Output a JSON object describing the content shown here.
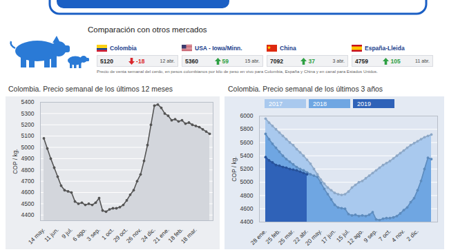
{
  "markets": {
    "title": "Comparación con otros mercados",
    "items": [
      {
        "name": "Colombia",
        "value": 5120,
        "change": -18,
        "date": "12 abr."
      },
      {
        "name": "USA - Iowa/Minn.",
        "value": 5360,
        "change": 59,
        "date": "15 abr."
      },
      {
        "name": "China",
        "value": 7092,
        "change": 37,
        "date": "3 abr."
      },
      {
        "name": "España-Lleida",
        "value": 4759,
        "change": 105,
        "date": "11 abr."
      }
    ],
    "note": "Precio de venta semanal del cerdo, en pesos colombianos por kilo de peso en vivo para Colombia, España y China y en canal para Estados Unidos."
  },
  "chart_data": [
    {
      "type": "area",
      "title": "Colombia. Precio semanal de los últimos 12 meses",
      "y_label": "COP / kg.",
      "categories": [
        "14 may.",
        null,
        null,
        null,
        "11 jun.",
        null,
        null,
        null,
        "9 jul.",
        null,
        null,
        null,
        "6 ago.",
        null,
        null,
        null,
        "3 sep.",
        null,
        null,
        null,
        "1 oct.",
        null,
        null,
        null,
        "29 oct.",
        null,
        null,
        null,
        "26 nov.",
        null,
        null,
        null,
        "24 dic.",
        null,
        null,
        null,
        "21 ene.",
        null,
        null,
        null,
        "18 feb.",
        null,
        null,
        null,
        "18 mar.",
        null,
        null,
        null,
        null
      ],
      "values": [
        5080,
        4990,
        4900,
        4820,
        4740,
        4660,
        4620,
        4610,
        4600,
        4520,
        4500,
        4510,
        4490,
        4500,
        4490,
        4510,
        4550,
        4440,
        4430,
        4450,
        4460,
        4460,
        4470,
        4490,
        4530,
        4580,
        4620,
        4700,
        4760,
        4880,
        5020,
        5200,
        5370,
        5380,
        5350,
        5300,
        5280,
        5240,
        5250,
        5230,
        5240,
        5210,
        5220,
        5200,
        5190,
        5180,
        5160,
        5140,
        5120
      ],
      "color": "#555555",
      "marker": "circle",
      "ylim": [
        4350,
        5400
      ],
      "yticks": [
        4400,
        4500,
        4600,
        4700,
        4800,
        4900,
        5000,
        5100,
        5200,
        5300,
        5400
      ],
      "grid": true
    },
    {
      "type": "area",
      "title": "Colombia. Precio semanal de los últimos 3 años",
      "y_label": "COP / kg.",
      "categories": [
        "28 ene.",
        null,
        null,
        null,
        "25 feb.",
        null,
        null,
        null,
        "25 mar.",
        null,
        null,
        null,
        "22 abr.",
        null,
        null,
        null,
        "20 may.",
        null,
        null,
        null,
        "17 jun.",
        null,
        null,
        null,
        "15 jul.",
        null,
        null,
        null,
        "12 ago.",
        null,
        null,
        null,
        "9 sep.",
        null,
        null,
        null,
        "7 oct.",
        null,
        null,
        null,
        "4 nov.",
        null,
        null,
        null,
        "2 dic.",
        null,
        null,
        null,
        null
      ],
      "series": [
        {
          "name": "2017",
          "color": "#a9c9ee",
          "values": [
            5960,
            5900,
            5850,
            5800,
            5750,
            5700,
            5650,
            5600,
            5560,
            5500,
            5450,
            5400,
            5340,
            5280,
            5200,
            5120,
            5040,
            4980,
            4920,
            4880,
            4840,
            4820,
            4810,
            4820,
            4860,
            4920,
            4960,
            5000,
            5020,
            5060,
            5100,
            5140,
            5180,
            5220,
            5260,
            5290,
            5320,
            5360,
            5400,
            5440,
            5480,
            5520,
            5560,
            5590,
            5620,
            5650,
            5680,
            5700,
            5720
          ]
        },
        {
          "name": "2018",
          "color": "#6fa6e2",
          "values": [
            5730,
            5650,
            5580,
            5520,
            5460,
            5400,
            5350,
            5310,
            5270,
            5230,
            5200,
            5180,
            5150,
            5120,
            5100,
            5080,
            4990,
            4900,
            4820,
            4740,
            4660,
            4620,
            4610,
            4600,
            4520,
            4500,
            4510,
            4490,
            4500,
            4490,
            4510,
            4550,
            4440,
            4430,
            4450,
            4460,
            4460,
            4470,
            4490,
            4530,
            4580,
            4620,
            4700,
            4760,
            4880,
            5020,
            5200,
            5370,
            5350
          ]
        },
        {
          "name": "2019",
          "color": "#2f62b8",
          "values": [
            5380,
            5330,
            5300,
            5260,
            5250,
            5230,
            5220,
            5200,
            5190,
            5180,
            5160,
            5140,
            5120,
            null,
            null,
            null,
            null,
            null,
            null,
            null,
            null,
            null,
            null,
            null,
            null,
            null,
            null,
            null,
            null,
            null,
            null,
            null,
            null,
            null,
            null,
            null,
            null,
            null,
            null,
            null,
            null,
            null,
            null,
            null,
            null,
            null,
            null,
            null,
            null
          ]
        }
      ],
      "marker": "circle",
      "legend": "top-left",
      "ylim": [
        4400,
        6000
      ],
      "yticks": [
        4400,
        4600,
        4800,
        5000,
        5200,
        5400,
        5600,
        5800,
        6000
      ],
      "grid": true
    }
  ]
}
